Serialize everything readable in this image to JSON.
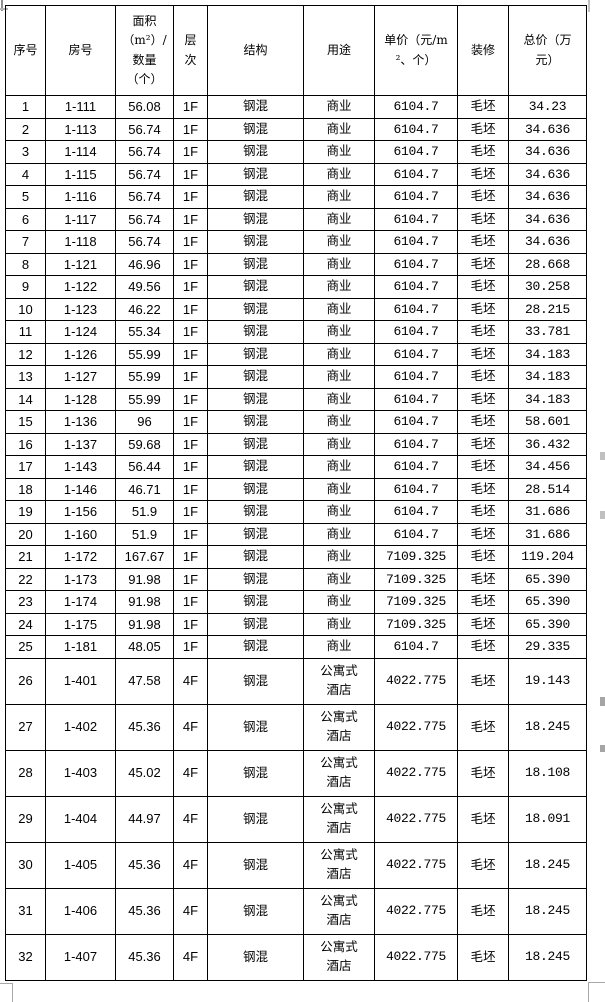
{
  "page": {
    "background_color": "#ffffff",
    "table_border_color": "#000000",
    "text_color": "#000000",
    "page_marker_color": "#a8a8a8"
  },
  "table": {
    "columns": [
      {
        "key": "index",
        "label": "序号"
      },
      {
        "key": "room",
        "label": "房号"
      },
      {
        "key": "area",
        "label": "面积（m²）/数量（个）"
      },
      {
        "key": "floor",
        "label": "层次"
      },
      {
        "key": "structure",
        "label": "结构"
      },
      {
        "key": "usage",
        "label": "用途"
      },
      {
        "key": "unit-price",
        "label": "单价（元/m²、个）"
      },
      {
        "key": "decoration",
        "label": "装修"
      },
      {
        "key": "total-price",
        "label": "总价（万元）"
      }
    ],
    "rows": [
      [
        "1",
        "1-111",
        "56.08",
        "1F",
        "钢混",
        "商业",
        "6104.7",
        "毛坯",
        "34.23"
      ],
      [
        "2",
        "1-113",
        "56.74",
        "1F",
        "钢混",
        "商业",
        "6104.7",
        "毛坯",
        "34.636"
      ],
      [
        "3",
        "1-114",
        "56.74",
        "1F",
        "钢混",
        "商业",
        "6104.7",
        "毛坯",
        "34.636"
      ],
      [
        "4",
        "1-115",
        "56.74",
        "1F",
        "钢混",
        "商业",
        "6104.7",
        "毛坯",
        "34.636"
      ],
      [
        "5",
        "1-116",
        "56.74",
        "1F",
        "钢混",
        "商业",
        "6104.7",
        "毛坯",
        "34.636"
      ],
      [
        "6",
        "1-117",
        "56.74",
        "1F",
        "钢混",
        "商业",
        "6104.7",
        "毛坯",
        "34.636"
      ],
      [
        "7",
        "1-118",
        "56.74",
        "1F",
        "钢混",
        "商业",
        "6104.7",
        "毛坯",
        "34.636"
      ],
      [
        "8",
        "1-121",
        "46.96",
        "1F",
        "钢混",
        "商业",
        "6104.7",
        "毛坯",
        "28.668"
      ],
      [
        "9",
        "1-122",
        "49.56",
        "1F",
        "钢混",
        "商业",
        "6104.7",
        "毛坯",
        "30.258"
      ],
      [
        "10",
        "1-123",
        "46.22",
        "1F",
        "钢混",
        "商业",
        "6104.7",
        "毛坯",
        "28.215"
      ],
      [
        "11",
        "1-124",
        "55.34",
        "1F",
        "钢混",
        "商业",
        "6104.7",
        "毛坯",
        "33.781"
      ],
      [
        "12",
        "1-126",
        "55.99",
        "1F",
        "钢混",
        "商业",
        "6104.7",
        "毛坯",
        "34.183"
      ],
      [
        "13",
        "1-127",
        "55.99",
        "1F",
        "钢混",
        "商业",
        "6104.7",
        "毛坯",
        "34.183"
      ],
      [
        "14",
        "1-128",
        "55.99",
        "1F",
        "钢混",
        "商业",
        "6104.7",
        "毛坯",
        "34.183"
      ],
      [
        "15",
        "1-136",
        "96",
        "1F",
        "钢混",
        "商业",
        "6104.7",
        "毛坯",
        "58.601"
      ],
      [
        "16",
        "1-137",
        "59.68",
        "1F",
        "钢混",
        "商业",
        "6104.7",
        "毛坯",
        "36.432"
      ],
      [
        "17",
        "1-143",
        "56.44",
        "1F",
        "钢混",
        "商业",
        "6104.7",
        "毛坯",
        "34.456"
      ],
      [
        "18",
        "1-146",
        "46.71",
        "1F",
        "钢混",
        "商业",
        "6104.7",
        "毛坯",
        "28.514"
      ],
      [
        "19",
        "1-156",
        "51.9",
        "1F",
        "钢混",
        "商业",
        "6104.7",
        "毛坯",
        "31.686"
      ],
      [
        "20",
        "1-160",
        "51.9",
        "1F",
        "钢混",
        "商业",
        "6104.7",
        "毛坯",
        "31.686"
      ],
      [
        "21",
        "1-172",
        "167.67",
        "1F",
        "钢混",
        "商业",
        "7109.325",
        "毛坯",
        "119.204"
      ],
      [
        "22",
        "1-173",
        "91.98",
        "1F",
        "钢混",
        "商业",
        "7109.325",
        "毛坯",
        "65.390"
      ],
      [
        "23",
        "1-174",
        "91.98",
        "1F",
        "钢混",
        "商业",
        "7109.325",
        "毛坯",
        "65.390"
      ],
      [
        "24",
        "1-175",
        "91.98",
        "1F",
        "钢混",
        "商业",
        "7109.325",
        "毛坯",
        "65.390"
      ],
      [
        "25",
        "1-181",
        "48.05",
        "1F",
        "钢混",
        "商业",
        "6104.7",
        "毛坯",
        "29.335"
      ],
      [
        "26",
        "1-401",
        "47.58",
        "4F",
        "钢混",
        "公寓式酒店",
        "4022.775",
        "毛坯",
        "19.143"
      ],
      [
        "27",
        "1-402",
        "45.36",
        "4F",
        "钢混",
        "公寓式酒店",
        "4022.775",
        "毛坯",
        "18.245"
      ],
      [
        "28",
        "1-403",
        "45.02",
        "4F",
        "钢混",
        "公寓式酒店",
        "4022.775",
        "毛坯",
        "18.108"
      ],
      [
        "29",
        "1-404",
        "44.97",
        "4F",
        "钢混",
        "公寓式酒店",
        "4022.775",
        "毛坯",
        "18.091"
      ],
      [
        "30",
        "1-405",
        "45.36",
        "4F",
        "钢混",
        "公寓式酒店",
        "4022.775",
        "毛坯",
        "18.245"
      ],
      [
        "31",
        "1-406",
        "45.36",
        "4F",
        "钢混",
        "公寓式酒店",
        "4022.775",
        "毛坯",
        "18.245"
      ],
      [
        "32",
        "1-407",
        "45.36",
        "4F",
        "钢混",
        "公寓式酒店",
        "4022.775",
        "毛坯",
        "18.245"
      ]
    ]
  }
}
